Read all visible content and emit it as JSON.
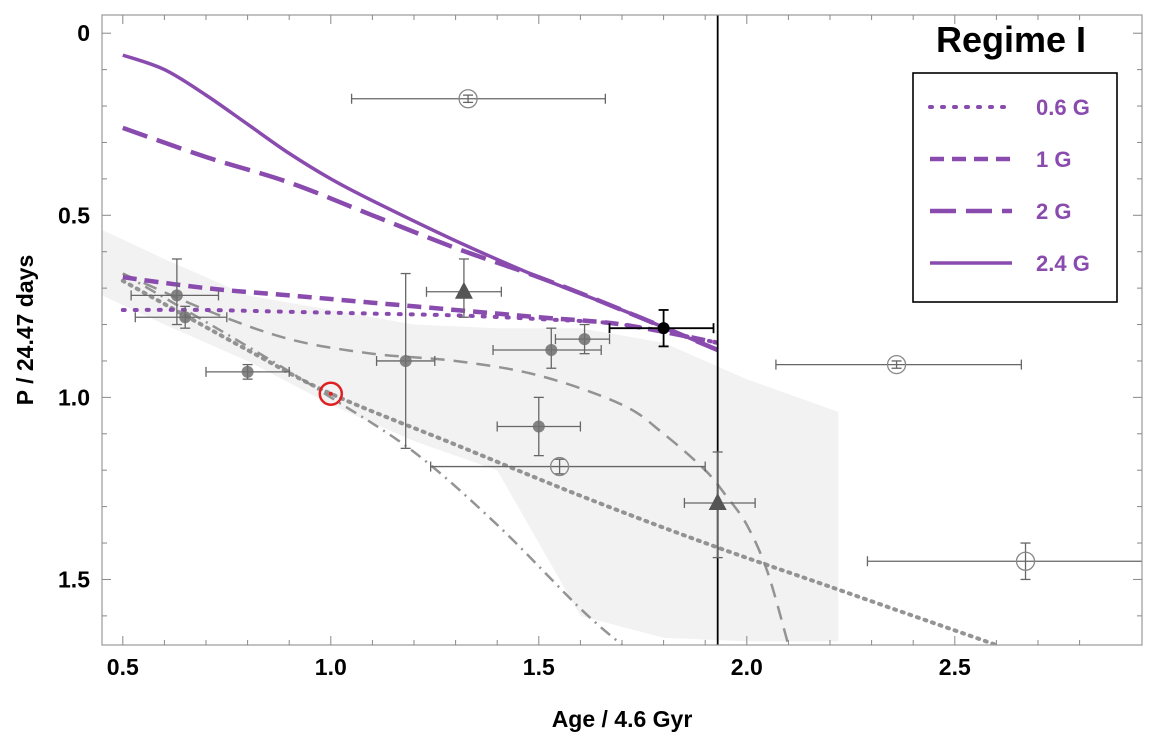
{
  "chart_data": {
    "type": "scatter",
    "title": "Regime I",
    "xlabel": "Age / 4.6 Gyr",
    "ylabel": "P / 24.47 days",
    "xlim": [
      0.45,
      2.95
    ],
    "ylim": [
      1.68,
      -0.05
    ],
    "y_inverted": true,
    "x_ticks": [
      "0.5",
      "1.0",
      "1.5",
      "2.0",
      "2.5"
    ],
    "x_tick_values": [
      0.5,
      1.0,
      1.5,
      2.0,
      2.5
    ],
    "y_ticks": [
      "0",
      "0.5",
      "1.0",
      "1.5"
    ],
    "y_tick_values": [
      0,
      0.5,
      1.0,
      1.5
    ],
    "grid": false,
    "legend_position": "top-right",
    "colors": {
      "model": "#8a4baf",
      "gray": "#888888",
      "band": "#f2f2f2",
      "sun": "#e02020"
    },
    "vertical_line_x": 1.93,
    "series": [
      {
        "name": "0.6 G",
        "style": "dotted",
        "x": [
          0.5,
          0.7,
          0.9,
          1.1,
          1.3,
          1.5,
          1.7,
          1.93
        ],
        "y": [
          0.76,
          0.76,
          0.765,
          0.77,
          0.775,
          0.785,
          0.8,
          0.85
        ]
      },
      {
        "name": "1 G",
        "style": "short-dashed",
        "x": [
          0.5,
          0.7,
          0.9,
          1.1,
          1.3,
          1.5,
          1.7,
          1.93
        ],
        "y": [
          0.67,
          0.7,
          0.72,
          0.74,
          0.76,
          0.78,
          0.8,
          0.85
        ]
      },
      {
        "name": "2 G",
        "style": "long-dashed",
        "x": [
          0.5,
          0.7,
          0.9,
          1.1,
          1.3,
          1.5,
          1.7,
          1.93
        ],
        "y": [
          0.26,
          0.34,
          0.41,
          0.5,
          0.59,
          0.67,
          0.76,
          0.87
        ]
      },
      {
        "name": "2.4 G",
        "style": "solid",
        "x": [
          0.5,
          0.6,
          0.7,
          0.8,
          0.9,
          1.0,
          1.1,
          1.3,
          1.5,
          1.7,
          1.93
        ],
        "y": [
          0.06,
          0.1,
          0.17,
          0.25,
          0.33,
          0.4,
          0.46,
          0.57,
          0.67,
          0.76,
          0.87
        ]
      }
    ],
    "gray_curves": [
      {
        "style": "dashed",
        "x": [
          0.5,
          0.7,
          0.9,
          1.1,
          1.3,
          1.5,
          1.7,
          1.8,
          1.9,
          1.95,
          2.0,
          2.05,
          2.1
        ],
        "y": [
          0.66,
          0.76,
          0.84,
          0.88,
          0.9,
          0.94,
          1.02,
          1.1,
          1.2,
          1.27,
          1.35,
          1.48,
          1.68
        ]
      },
      {
        "style": "dotted",
        "x": [
          0.5,
          0.8,
          1.0,
          1.3,
          1.6,
          1.9,
          2.2,
          2.5,
          2.6
        ],
        "y": [
          0.68,
          0.87,
          0.99,
          1.13,
          1.27,
          1.4,
          1.52,
          1.64,
          1.68
        ]
      },
      {
        "style": "dash-dot",
        "x": [
          0.5,
          0.8,
          1.0,
          1.2,
          1.4,
          1.6,
          1.7
        ],
        "y": [
          0.66,
          0.86,
          1.0,
          1.15,
          1.35,
          1.58,
          1.68
        ]
      }
    ],
    "band": {
      "upper": {
        "x": [
          0.45,
          0.6,
          0.8,
          1.0,
          1.2,
          1.4,
          1.6,
          1.8,
          2.0,
          2.22
        ],
        "y": [
          0.54,
          0.62,
          0.72,
          0.76,
          0.8,
          0.81,
          0.81,
          0.85,
          0.95,
          1.04
        ]
      },
      "lower": {
        "x": [
          2.22,
          2.0,
          1.8,
          1.6,
          1.4,
          1.2,
          1.0,
          0.8,
          0.6,
          0.45
        ],
        "y": [
          1.67,
          1.67,
          1.66,
          1.6,
          1.2,
          1.12,
          1.02,
          0.9,
          0.8,
          0.72
        ]
      }
    },
    "points": [
      {
        "marker": "filled-gray",
        "x": 0.63,
        "y": 0.72,
        "xerr": [
          0.11,
          0.1
        ],
        "yerr": [
          0.1,
          0.08
        ]
      },
      {
        "marker": "filled-gray",
        "x": 0.65,
        "y": 0.78,
        "xerr": [
          0.12,
          0.1
        ],
        "yerr": [
          0.03,
          0.03
        ]
      },
      {
        "marker": "filled-gray",
        "x": 0.8,
        "y": 0.93,
        "xerr": [
          0.1,
          0.1
        ],
        "yerr": [
          0.02,
          0.02
        ]
      },
      {
        "marker": "filled-gray",
        "x": 1.18,
        "y": 0.9,
        "xerr": [
          0.07,
          0.07
        ],
        "yerr": [
          0.24,
          0.24
        ]
      },
      {
        "marker": "filled-gray",
        "x": 1.5,
        "y": 1.08,
        "xerr": [
          0.1,
          0.1
        ],
        "yerr": [
          0.08,
          0.08
        ]
      },
      {
        "marker": "filled-gray",
        "x": 1.53,
        "y": 0.87,
        "xerr": [
          0.14,
          0.12
        ],
        "yerr": [
          0.06,
          0.05
        ]
      },
      {
        "marker": "filled-gray",
        "x": 1.61,
        "y": 0.84,
        "xerr": [
          0.07,
          0.06
        ],
        "yerr": [
          0.04,
          0.04
        ]
      },
      {
        "marker": "triangle",
        "x": 1.32,
        "y": 0.71,
        "xerr": [
          0.09,
          0.09
        ],
        "yerr": [
          0.09,
          0.07
        ]
      },
      {
        "marker": "triangle",
        "x": 1.93,
        "y": 1.29,
        "xerr": [
          0.08,
          0.09
        ],
        "yerr": [
          0.14,
          0.15
        ]
      },
      {
        "marker": "filled-black",
        "x": 1.8,
        "y": 0.81,
        "xerr": [
          0.13,
          0.12
        ],
        "yerr": [
          0.05,
          0.05
        ]
      },
      {
        "marker": "open",
        "x": 1.33,
        "y": 0.18,
        "xerr": [
          0.28,
          0.33
        ],
        "yerr": [
          0.01,
          0.01
        ]
      },
      {
        "marker": "open",
        "x": 1.55,
        "y": 1.19,
        "xerr": [
          0.31,
          0.35
        ],
        "yerr": [
          0.02,
          0.02
        ]
      },
      {
        "marker": "open",
        "x": 2.36,
        "y": 0.91,
        "xerr": [
          0.29,
          0.3
        ],
        "yerr": [
          0.01,
          0.01
        ]
      },
      {
        "marker": "open",
        "x": 2.67,
        "y": 1.45,
        "xerr": [
          0.38,
          0.3
        ],
        "yerr": [
          0.05,
          0.05
        ]
      },
      {
        "marker": "sun",
        "x": 1.0,
        "y": 0.99
      }
    ]
  }
}
